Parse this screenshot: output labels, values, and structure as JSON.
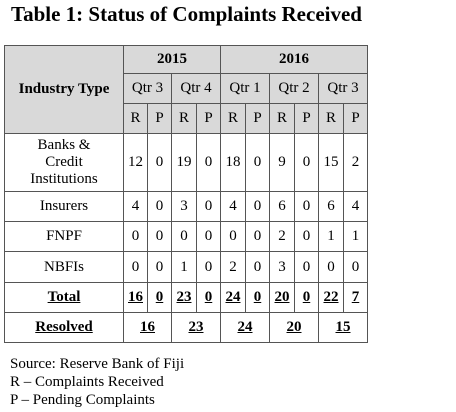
{
  "title": "Table 1: Status of Complaints Received",
  "header": {
    "industry_type": "Industry Type",
    "years": [
      "2015",
      "2016"
    ],
    "quarters": [
      "Qtr 3",
      "Qtr 4",
      "Qtr 1",
      "Qtr 2",
      "Qtr 3"
    ],
    "subcols": [
      "R",
      "P",
      "R",
      "P",
      "R",
      "P",
      "R",
      "P",
      "R",
      "P"
    ]
  },
  "rows": [
    {
      "label_lines": [
        "Banks &",
        "Credit",
        "Institutions"
      ],
      "values": [
        "12",
        "0",
        "19",
        "0",
        "18",
        "0",
        "9",
        "0",
        "15",
        "2"
      ]
    },
    {
      "label_lines": [
        "Insurers"
      ],
      "values": [
        "4",
        "0",
        "3",
        "0",
        "4",
        "0",
        "6",
        "0",
        "6",
        "4"
      ]
    },
    {
      "label_lines": [
        "FNPF"
      ],
      "values": [
        "0",
        "0",
        "0",
        "0",
        "0",
        "0",
        "2",
        "0",
        "1",
        "1"
      ]
    },
    {
      "label_lines": [
        "NBFIs"
      ],
      "values": [
        "0",
        "0",
        "1",
        "0",
        "2",
        "0",
        "3",
        "0",
        "0",
        "0"
      ]
    }
  ],
  "total": {
    "label": "Total",
    "values": [
      "16",
      "0",
      "23",
      "0",
      "24",
      "0",
      "20",
      "0",
      "22",
      "7"
    ]
  },
  "resolved": {
    "label": "Resolved",
    "values": [
      "16",
      "23",
      "24",
      "20",
      "15"
    ]
  },
  "notes": [
    "Source: Reserve Bank of Fiji",
    "R – Complaints Received",
    "P – Pending Complaints"
  ]
}
